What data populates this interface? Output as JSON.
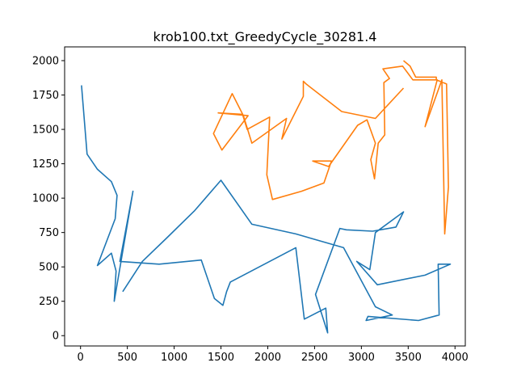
{
  "chart_data": {
    "type": "line",
    "title": "krob100.txt_GreedyCycle_30281.4",
    "xlabel": "",
    "ylabel": "",
    "xlim": [
      -170,
      4110
    ],
    "ylim": [
      -75,
      2100
    ],
    "xticks": [
      0,
      500,
      1000,
      1500,
      2000,
      2500,
      3000,
      3500,
      4000
    ],
    "yticks": [
      0,
      250,
      500,
      750,
      1000,
      1250,
      1500,
      1750,
      2000
    ],
    "grid": false,
    "legend": "none",
    "series": [
      {
        "color": "#1f77b4",
        "x": [
          10,
          70,
          180,
          330,
          390,
          370,
          180,
          330,
          380,
          360,
          560,
          420,
          840,
          1290,
          1430,
          1520,
          1560,
          1600,
          2300,
          2390,
          2620,
          2640,
          2510,
          2770,
          2840,
          3120,
          3370,
          3450,
          3150,
          3090,
          2950,
          3170,
          3680,
          3950,
          3820,
          3830,
          3610,
          3070,
          3050,
          3330,
          3150,
          2810,
          2300,
          1830,
          1500,
          1220,
          920,
          660,
          450
        ],
        "y": [
          1820,
          1320,
          1210,
          1120,
          1020,
          850,
          510,
          600,
          470,
          250,
          1050,
          540,
          520,
          550,
          270,
          220,
          320,
          390,
          640,
          120,
          200,
          20,
          300,
          780,
          770,
          760,
          790,
          900,
          750,
          480,
          540,
          370,
          440,
          520,
          520,
          150,
          110,
          140,
          110,
          150,
          210,
          640,
          740,
          810,
          1130,
          910,
          710,
          540,
          320
        ]
      },
      {
        "color": "#ff7f0e",
        "x": [
          3450,
          3520,
          3580,
          3800,
          3800,
          3910,
          3920,
          3930,
          3890,
          3860,
          3680,
          3810,
          3550,
          3440,
          3230,
          3300,
          3240,
          3250,
          3180,
          3140,
          3100,
          3150,
          3060,
          2960,
          2650,
          2480,
          2680,
          2600,
          2360,
          2050,
          1990,
          2020,
          1780,
          1730,
          1470,
          1790,
          1510,
          1420,
          1620,
          1740,
          1830,
          2200,
          2150,
          2380,
          2380,
          2410,
          2790,
          3150,
          3450
        ],
        "y": [
          2000,
          1960,
          1880,
          1880,
          1860,
          1830,
          1450,
          1080,
          740,
          1860,
          1520,
          1860,
          1860,
          1960,
          1940,
          1870,
          1840,
          1460,
          1400,
          1140,
          1280,
          1400,
          1570,
          1530,
          1230,
          1270,
          1270,
          1110,
          1050,
          990,
          1170,
          1590,
          1500,
          1610,
          1620,
          1600,
          1350,
          1470,
          1760,
          1600,
          1400,
          1580,
          1430,
          1740,
          1850,
          1830,
          1630,
          1580,
          1800
        ]
      }
    ]
  }
}
